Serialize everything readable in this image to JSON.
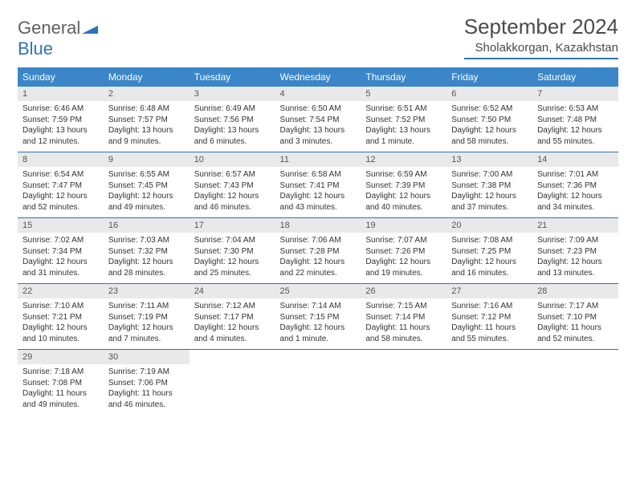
{
  "brand": {
    "part1": "General",
    "part2": "Blue"
  },
  "title": "September 2024",
  "location": "Sholakkorgan, Kazakhstan",
  "colors": {
    "header_bg": "#3a86c8",
    "accent_line": "#2d74b8",
    "daynum_bg": "#e9e9e9",
    "text": "#333333",
    "title_text": "#4a4a4a"
  },
  "day_headers": [
    "Sunday",
    "Monday",
    "Tuesday",
    "Wednesday",
    "Thursday",
    "Friday",
    "Saturday"
  ],
  "weeks": [
    [
      {
        "n": "1",
        "sr": "Sunrise: 6:46 AM",
        "ss": "Sunset: 7:59 PM",
        "dl1": "Daylight: 13 hours",
        "dl2": "and 12 minutes."
      },
      {
        "n": "2",
        "sr": "Sunrise: 6:48 AM",
        "ss": "Sunset: 7:57 PM",
        "dl1": "Daylight: 13 hours",
        "dl2": "and 9 minutes."
      },
      {
        "n": "3",
        "sr": "Sunrise: 6:49 AM",
        "ss": "Sunset: 7:56 PM",
        "dl1": "Daylight: 13 hours",
        "dl2": "and 6 minutes."
      },
      {
        "n": "4",
        "sr": "Sunrise: 6:50 AM",
        "ss": "Sunset: 7:54 PM",
        "dl1": "Daylight: 13 hours",
        "dl2": "and 3 minutes."
      },
      {
        "n": "5",
        "sr": "Sunrise: 6:51 AM",
        "ss": "Sunset: 7:52 PM",
        "dl1": "Daylight: 13 hours",
        "dl2": "and 1 minute."
      },
      {
        "n": "6",
        "sr": "Sunrise: 6:52 AM",
        "ss": "Sunset: 7:50 PM",
        "dl1": "Daylight: 12 hours",
        "dl2": "and 58 minutes."
      },
      {
        "n": "7",
        "sr": "Sunrise: 6:53 AM",
        "ss": "Sunset: 7:48 PM",
        "dl1": "Daylight: 12 hours",
        "dl2": "and 55 minutes."
      }
    ],
    [
      {
        "n": "8",
        "sr": "Sunrise: 6:54 AM",
        "ss": "Sunset: 7:47 PM",
        "dl1": "Daylight: 12 hours",
        "dl2": "and 52 minutes."
      },
      {
        "n": "9",
        "sr": "Sunrise: 6:55 AM",
        "ss": "Sunset: 7:45 PM",
        "dl1": "Daylight: 12 hours",
        "dl2": "and 49 minutes."
      },
      {
        "n": "10",
        "sr": "Sunrise: 6:57 AM",
        "ss": "Sunset: 7:43 PM",
        "dl1": "Daylight: 12 hours",
        "dl2": "and 46 minutes."
      },
      {
        "n": "11",
        "sr": "Sunrise: 6:58 AM",
        "ss": "Sunset: 7:41 PM",
        "dl1": "Daylight: 12 hours",
        "dl2": "and 43 minutes."
      },
      {
        "n": "12",
        "sr": "Sunrise: 6:59 AM",
        "ss": "Sunset: 7:39 PM",
        "dl1": "Daylight: 12 hours",
        "dl2": "and 40 minutes."
      },
      {
        "n": "13",
        "sr": "Sunrise: 7:00 AM",
        "ss": "Sunset: 7:38 PM",
        "dl1": "Daylight: 12 hours",
        "dl2": "and 37 minutes."
      },
      {
        "n": "14",
        "sr": "Sunrise: 7:01 AM",
        "ss": "Sunset: 7:36 PM",
        "dl1": "Daylight: 12 hours",
        "dl2": "and 34 minutes."
      }
    ],
    [
      {
        "n": "15",
        "sr": "Sunrise: 7:02 AM",
        "ss": "Sunset: 7:34 PM",
        "dl1": "Daylight: 12 hours",
        "dl2": "and 31 minutes."
      },
      {
        "n": "16",
        "sr": "Sunrise: 7:03 AM",
        "ss": "Sunset: 7:32 PM",
        "dl1": "Daylight: 12 hours",
        "dl2": "and 28 minutes."
      },
      {
        "n": "17",
        "sr": "Sunrise: 7:04 AM",
        "ss": "Sunset: 7:30 PM",
        "dl1": "Daylight: 12 hours",
        "dl2": "and 25 minutes."
      },
      {
        "n": "18",
        "sr": "Sunrise: 7:06 AM",
        "ss": "Sunset: 7:28 PM",
        "dl1": "Daylight: 12 hours",
        "dl2": "and 22 minutes."
      },
      {
        "n": "19",
        "sr": "Sunrise: 7:07 AM",
        "ss": "Sunset: 7:26 PM",
        "dl1": "Daylight: 12 hours",
        "dl2": "and 19 minutes."
      },
      {
        "n": "20",
        "sr": "Sunrise: 7:08 AM",
        "ss": "Sunset: 7:25 PM",
        "dl1": "Daylight: 12 hours",
        "dl2": "and 16 minutes."
      },
      {
        "n": "21",
        "sr": "Sunrise: 7:09 AM",
        "ss": "Sunset: 7:23 PM",
        "dl1": "Daylight: 12 hours",
        "dl2": "and 13 minutes."
      }
    ],
    [
      {
        "n": "22",
        "sr": "Sunrise: 7:10 AM",
        "ss": "Sunset: 7:21 PM",
        "dl1": "Daylight: 12 hours",
        "dl2": "and 10 minutes."
      },
      {
        "n": "23",
        "sr": "Sunrise: 7:11 AM",
        "ss": "Sunset: 7:19 PM",
        "dl1": "Daylight: 12 hours",
        "dl2": "and 7 minutes."
      },
      {
        "n": "24",
        "sr": "Sunrise: 7:12 AM",
        "ss": "Sunset: 7:17 PM",
        "dl1": "Daylight: 12 hours",
        "dl2": "and 4 minutes."
      },
      {
        "n": "25",
        "sr": "Sunrise: 7:14 AM",
        "ss": "Sunset: 7:15 PM",
        "dl1": "Daylight: 12 hours",
        "dl2": "and 1 minute."
      },
      {
        "n": "26",
        "sr": "Sunrise: 7:15 AM",
        "ss": "Sunset: 7:14 PM",
        "dl1": "Daylight: 11 hours",
        "dl2": "and 58 minutes."
      },
      {
        "n": "27",
        "sr": "Sunrise: 7:16 AM",
        "ss": "Sunset: 7:12 PM",
        "dl1": "Daylight: 11 hours",
        "dl2": "and 55 minutes."
      },
      {
        "n": "28",
        "sr": "Sunrise: 7:17 AM",
        "ss": "Sunset: 7:10 PM",
        "dl1": "Daylight: 11 hours",
        "dl2": "and 52 minutes."
      }
    ],
    [
      {
        "n": "29",
        "sr": "Sunrise: 7:18 AM",
        "ss": "Sunset: 7:08 PM",
        "dl1": "Daylight: 11 hours",
        "dl2": "and 49 minutes."
      },
      {
        "n": "30",
        "sr": "Sunrise: 7:19 AM",
        "ss": "Sunset: 7:06 PM",
        "dl1": "Daylight: 11 hours",
        "dl2": "and 46 minutes."
      },
      {
        "empty": true
      },
      {
        "empty": true
      },
      {
        "empty": true
      },
      {
        "empty": true
      },
      {
        "empty": true
      }
    ]
  ]
}
